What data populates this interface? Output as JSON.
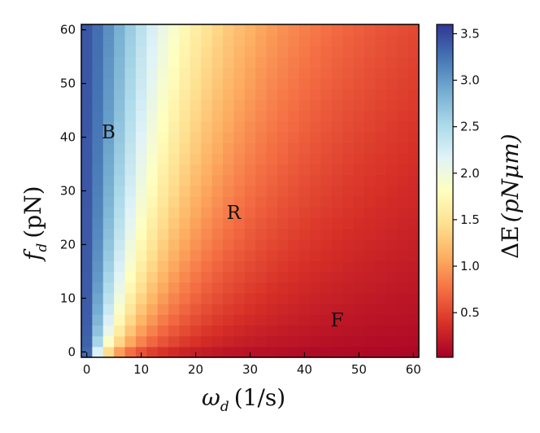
{
  "chart_data": {
    "type": "heatmap",
    "title": "",
    "x": {
      "symbol": "ω",
      "sub": "d",
      "unit": "(1/s)",
      "range": [
        -1,
        61
      ],
      "ticks": [
        "0",
        "10",
        "20",
        "30",
        "40",
        "50",
        "60"
      ]
    },
    "y": {
      "symbol": "f",
      "sub": "d",
      "unit": "(pN)",
      "range": [
        -1,
        61
      ],
      "ticks": [
        "0",
        "10",
        "20",
        "30",
        "40",
        "50",
        "60"
      ]
    },
    "grid": false,
    "cell_size": 2,
    "colormap": "RdYlBu",
    "colorbar": {
      "label_symbol": "ΔE",
      "label_unit": "(pNμm)",
      "range": [
        0.02,
        3.6
      ],
      "ticks": [
        "0.5",
        "1.0",
        "1.5",
        "2.0",
        "2.5",
        "3.0",
        "3.5"
      ]
    },
    "regions": [
      {
        "label": "B",
        "x": 4,
        "y": 41
      },
      {
        "label": "R",
        "x": 27,
        "y": 26
      },
      {
        "label": "F",
        "x": 46,
        "y": 6
      }
    ],
    "model": "dE = 3.4 / (1 + ((w + 0.4) / w0)^1.5) + 0.03, w0 = 3.5 + 0.85 * f^0.7",
    "colors": [
      "#a50026",
      "#d73027",
      "#f46d43",
      "#fdae61",
      "#fee090",
      "#ffffbf",
      "#e0f3f8",
      "#abd9e9",
      "#74add1",
      "#4575b4",
      "#313695"
    ]
  }
}
